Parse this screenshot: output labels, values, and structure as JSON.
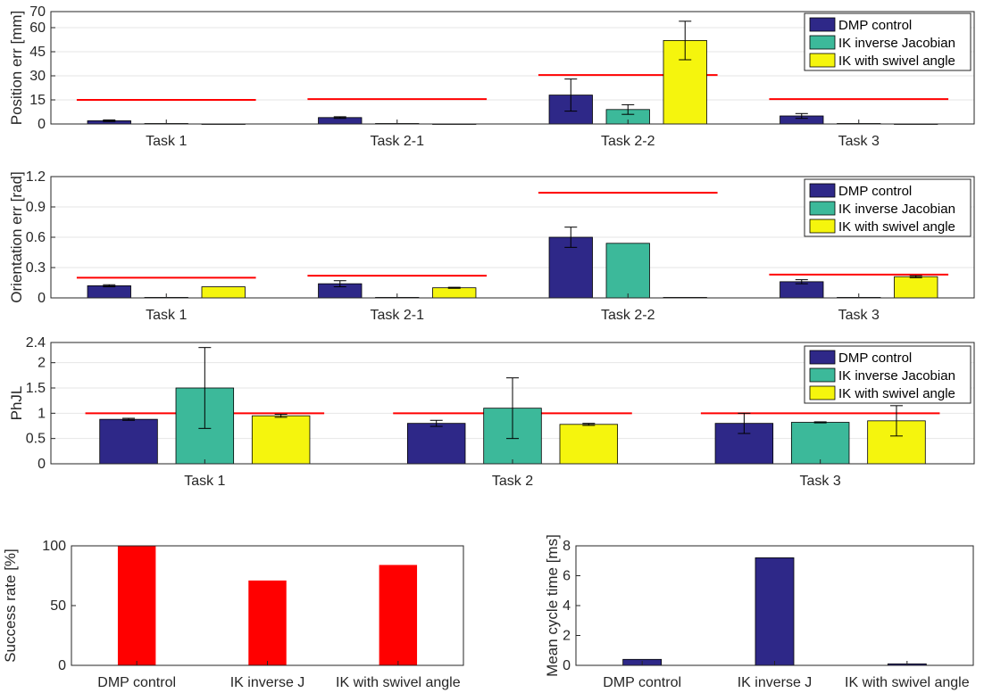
{
  "colors": {
    "dmp": "#2e2888",
    "ik_jacobian": "#3cb99a",
    "ik_swivel": "#f5f50d",
    "reference": "#ff0000",
    "success_bar": "#ff0000",
    "axis": "#262626",
    "grid": "#e6e6e6"
  },
  "chart_data": [
    {
      "id": "position",
      "type": "bar",
      "ylabel": "Position err [mm]",
      "ylim": [
        0,
        70
      ],
      "yticks": [
        0,
        15,
        30,
        45,
        60,
        70
      ],
      "categories": [
        "Task 1",
        "Task 2-1",
        "Task 2-2",
        "Task 3"
      ],
      "legend": [
        "DMP control",
        "IK inverse Jacobian",
        "IK with swivel angle"
      ],
      "legend_position": "top-right",
      "grid": true,
      "series": [
        {
          "name": "DMP control",
          "values": [
            2,
            4,
            18,
            5
          ],
          "errors": [
            0.5,
            0.5,
            10,
            1.5
          ]
        },
        {
          "name": "IK inverse Jacobian",
          "values": [
            0.3,
            0.3,
            9,
            0.3
          ],
          "errors": [
            0,
            0,
            3,
            0
          ]
        },
        {
          "name": "IK with swivel angle",
          "values": [
            0,
            0,
            52,
            0
          ],
          "errors": [
            0,
            0,
            12,
            0
          ]
        }
      ],
      "reference_lines": [
        15,
        15.5,
        30.5,
        15.5
      ]
    },
    {
      "id": "orientation",
      "type": "bar",
      "ylabel": "Orientation err [rad]",
      "ylim": [
        0,
        1.2
      ],
      "yticks": [
        0,
        0.3,
        0.6,
        0.9,
        1.2
      ],
      "categories": [
        "Task 1",
        "Task 2-1",
        "Task 2-2",
        "Task 3"
      ],
      "legend": [
        "DMP control",
        "IK inverse Jacobian",
        "IK with swivel angle"
      ],
      "legend_position": "top-right",
      "grid": true,
      "series": [
        {
          "name": "DMP control",
          "values": [
            0.12,
            0.14,
            0.6,
            0.16
          ],
          "errors": [
            0.01,
            0.03,
            0.1,
            0.02
          ]
        },
        {
          "name": "IK inverse Jacobian",
          "values": [
            0.005,
            0.005,
            0.54,
            0.005
          ],
          "errors": [
            0,
            0,
            0,
            0
          ]
        },
        {
          "name": "IK with swivel angle",
          "values": [
            0.11,
            0.1,
            0.005,
            0.21
          ],
          "errors": [
            0,
            0.005,
            0,
            0.01
          ]
        }
      ],
      "reference_lines": [
        0.2,
        0.22,
        1.04,
        0.23
      ]
    },
    {
      "id": "phjl",
      "type": "bar",
      "ylabel": "PhJL",
      "ylim": [
        0,
        2.4
      ],
      "yticks": [
        0,
        0.5,
        1,
        1.5,
        2,
        2.4
      ],
      "categories": [
        "Task 1",
        "Task 2",
        "Task 3"
      ],
      "legend": [
        "DMP control",
        "IK inverse Jacobian",
        "IK with swivel angle"
      ],
      "legend_position": "top-right",
      "grid": true,
      "series": [
        {
          "name": "DMP control",
          "values": [
            0.88,
            0.8,
            0.8
          ],
          "errors": [
            0.02,
            0.06,
            0.2
          ]
        },
        {
          "name": "IK inverse Jacobian",
          "values": [
            1.5,
            1.1,
            0.82
          ],
          "errors": [
            0.8,
            0.6,
            0.01
          ]
        },
        {
          "name": "IK with swivel angle",
          "values": [
            0.95,
            0.78,
            0.85
          ],
          "errors": [
            0.03,
            0.02,
            0.3
          ]
        }
      ],
      "reference_lines": [
        1.0,
        1.0,
        1.0
      ]
    },
    {
      "id": "success",
      "type": "bar",
      "ylabel": "Success rate [%]",
      "ylim": [
        0,
        100
      ],
      "yticks": [
        0,
        50,
        100
      ],
      "categories": [
        "DMP control",
        "IK inverse J",
        "IK with swivel angle"
      ],
      "values": [
        100,
        71,
        84
      ],
      "grid": false
    },
    {
      "id": "cycle",
      "type": "bar",
      "ylabel": "Mean cycle time [ms]",
      "ylim": [
        0,
        8
      ],
      "yticks": [
        0,
        2,
        4,
        6,
        8
      ],
      "categories": [
        "DMP control",
        "IK inverse J",
        "IK with swivel angle"
      ],
      "values": [
        0.4,
        7.2,
        0.1
      ],
      "grid": false
    }
  ]
}
